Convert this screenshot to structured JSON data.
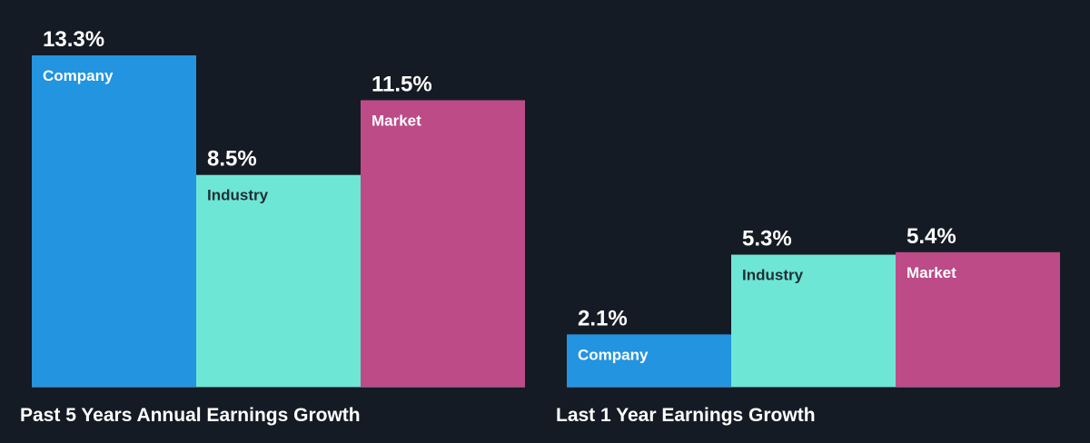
{
  "chart_data": [
    {
      "type": "bar",
      "title": "Past 5 Years Annual Earnings Growth",
      "categories": [
        "Company",
        "Industry",
        "Market"
      ],
      "values": [
        13.3,
        8.5,
        11.5
      ],
      "value_labels": [
        "13.3%",
        "8.5%",
        "11.5%"
      ],
      "colors": [
        "#2394df",
        "#6ee6d5",
        "#bc4b88"
      ],
      "label_colors": [
        "#ffffff",
        "#1f2f35",
        "#ffffff"
      ],
      "ylim": [
        0,
        13.3
      ]
    },
    {
      "type": "bar",
      "title": "Last 1 Year Earnings Growth",
      "categories": [
        "Company",
        "Industry",
        "Market"
      ],
      "values": [
        2.1,
        5.3,
        5.4
      ],
      "value_labels": [
        "2.1%",
        "5.3%",
        "5.4%"
      ],
      "colors": [
        "#2394df",
        "#6ee6d5",
        "#bc4b88"
      ],
      "label_colors": [
        "#ffffff",
        "#1f2f35",
        "#ffffff"
      ],
      "ylim": [
        0,
        13.3
      ]
    }
  ]
}
